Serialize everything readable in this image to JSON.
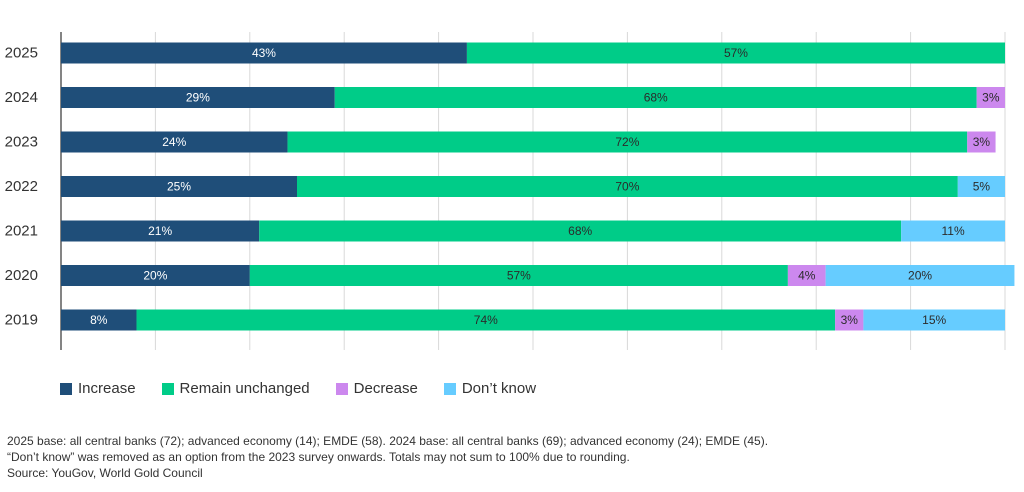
{
  "chart_data": {
    "type": "bar",
    "orientation": "horizontal",
    "stacked": true,
    "categories": [
      "2025",
      "2024",
      "2023",
      "2022",
      "2021",
      "2020",
      "2019"
    ],
    "xlim": [
      0,
      100
    ],
    "grid": true,
    "legend_position": "bottom-left",
    "series": [
      {
        "name": "Increase",
        "color": "#1f4e79",
        "values": [
          43,
          29,
          24,
          25,
          21,
          20,
          8
        ],
        "labels": [
          "43%",
          "29%",
          "24%",
          "25%",
          "21%",
          "20%",
          "8%"
        ]
      },
      {
        "name": "Remain unchanged",
        "color": "#00cc88",
        "values": [
          57,
          68,
          72,
          70,
          68,
          57,
          74
        ],
        "labels": [
          "57%",
          "68%",
          "72%",
          "70%",
          "68%",
          "57%",
          "74%"
        ]
      },
      {
        "name": "Decrease",
        "color": "#cc88ee",
        "values": [
          0,
          3,
          3,
          0,
          0,
          4,
          3
        ],
        "labels": [
          "",
          "3%",
          "3%",
          "",
          "",
          "4%",
          "3%"
        ]
      },
      {
        "name": "Don’t know",
        "color": "#66ccff",
        "values": [
          0,
          0,
          0,
          5,
          11,
          20,
          15
        ],
        "labels": [
          "",
          "",
          "",
          "5%",
          "11%",
          "20%",
          "15%"
        ]
      }
    ]
  },
  "notes": [
    "2025 base: all central banks (72); advanced economy (14); EMDE (58). 2024 base: all central banks (69); advanced economy (24); EMDE (45).",
    "“Don’t know” was removed as an option from the 2023 survey onwards. Totals may not sum to 100% due to rounding.",
    "Source: YouGov, World Gold Council"
  ]
}
